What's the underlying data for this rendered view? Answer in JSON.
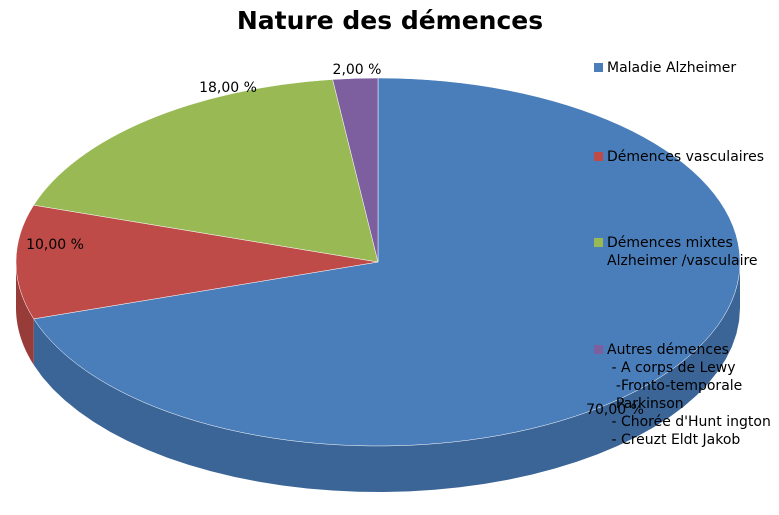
{
  "chart_data": {
    "type": "pie",
    "title": "Nature des démences",
    "categories": [
      "Maladie Alzheimer",
      "Démences vasculaires",
      "Démences mixtes\nAlzheimer /vasculaire",
      "Autres démences\n - A corps de Lewy\n  -Fronto-temporale\n  Parkinson\n - Chorée d'Hunt ington\n - Creuzt Eldt Jakob"
    ],
    "values": [
      70,
      10,
      18,
      2
    ],
    "value_labels": [
      "70,00 %",
      "10,00 %",
      "18,00 %",
      "2,00 %"
    ],
    "colors": [
      "#4a7ebb",
      "#be4b48",
      "#98b954",
      "#7d5fa0"
    ],
    "legend": "right"
  }
}
